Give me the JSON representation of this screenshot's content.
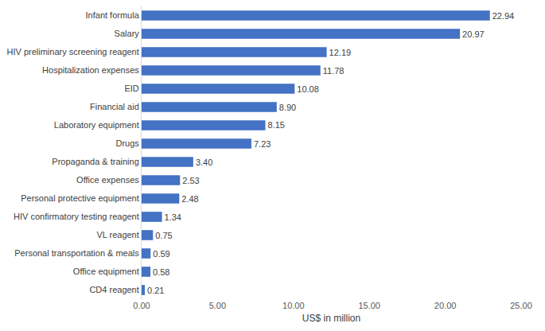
{
  "chart_data": {
    "type": "bar",
    "orientation": "horizontal",
    "categories": [
      "Infant formula",
      "Salary",
      "HIV preliminary screening reagent",
      "Hospitalization expenses",
      "EID",
      "Financial aid",
      "Laboratory equipment",
      "Drugs",
      "Propaganda & training",
      "Office expenses",
      "Personal protective equipment",
      "HIV confirmatory testing reagent",
      "VL reagent",
      "Personal transportation & meals",
      "Office equipment",
      "CD4 reagent"
    ],
    "values": [
      22.94,
      20.97,
      12.19,
      11.78,
      10.08,
      8.9,
      8.15,
      7.23,
      3.4,
      2.53,
      2.48,
      1.34,
      0.75,
      0.59,
      0.58,
      0.21
    ],
    "value_labels": [
      "22.94",
      "20.97",
      "12.19",
      "11.78",
      "10.08",
      "8.90",
      "8.15",
      "7.23",
      "3.40",
      "2.53",
      "2.48",
      "1.34",
      "0.75",
      "0.59",
      "0.58",
      "0.21"
    ],
    "data_labels": true,
    "color": "#4472c4",
    "x_label": "US$ in million",
    "xlim": [
      0,
      25
    ],
    "xticks": [
      {
        "value": 0,
        "label": "0.00"
      },
      {
        "value": 5,
        "label": "5.00"
      },
      {
        "value": 10,
        "label": "10.00"
      },
      {
        "value": 15,
        "label": "15.00"
      },
      {
        "value": 20,
        "label": "20.00"
      },
      {
        "value": 25,
        "label": "25.00"
      }
    ],
    "grid": false
  }
}
